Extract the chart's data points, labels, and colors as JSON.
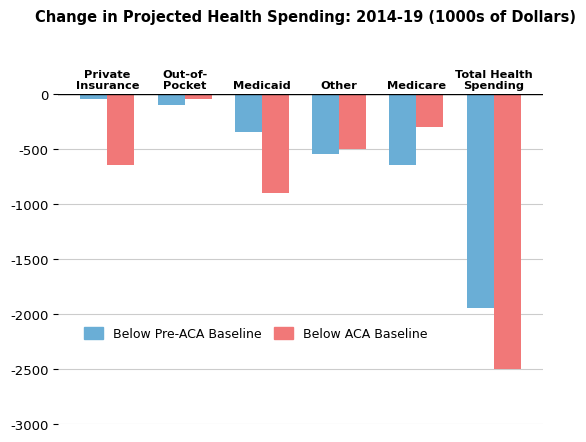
{
  "title": "Change in Projected Health Spending: 2014-19 (1000s of Dollars)",
  "categories": [
    "Private\nInsurance",
    "Out-of-\nPocket",
    "Medicaid",
    "Other",
    "Medicare",
    "Total Health\nSpending"
  ],
  "blue_values": [
    -50,
    -100,
    -350,
    -550,
    -650,
    -1950
  ],
  "red_values": [
    -650,
    -50,
    -900,
    -500,
    -300,
    -2500
  ],
  "blue_color": "#6aaed6",
  "red_color": "#f17878",
  "ylim_min": -3000,
  "ylim_max": 0,
  "yticks": [
    0,
    -500,
    -1000,
    -1500,
    -2000,
    -2500,
    -3000
  ],
  "legend_blue": "Below Pre-ACA Baseline",
  "legend_red": "Below ACA Baseline",
  "bar_width": 0.35,
  "background_color": "#ffffff",
  "grid_color": "#cccccc",
  "title_fontsize": 10.5,
  "legend_fontsize": 9,
  "ytick_fontsize": 9.5
}
